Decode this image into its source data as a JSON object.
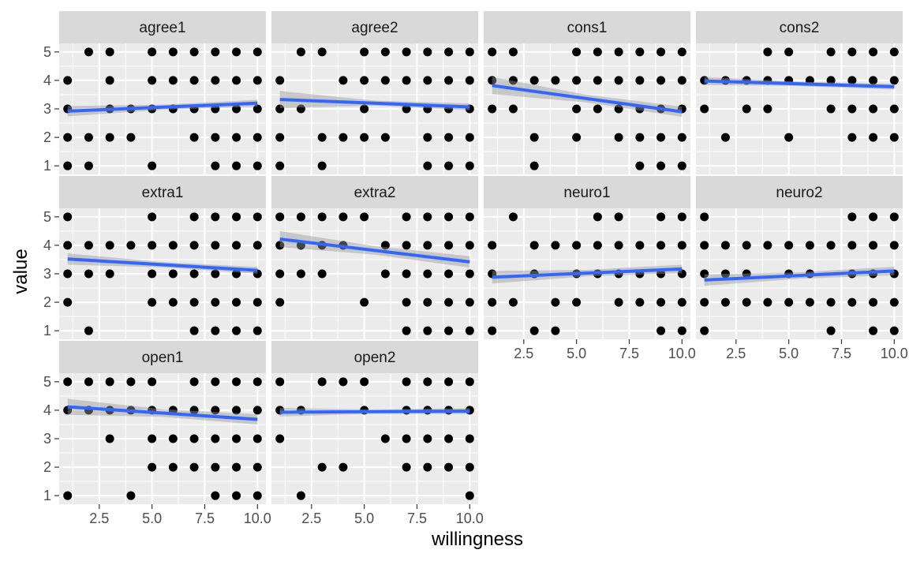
{
  "chart_data": {
    "type": "scatter",
    "xlabel": "willingness",
    "ylabel": "value",
    "x_ticks": [
      "2.5",
      "5.0",
      "7.5",
      "10.0"
    ],
    "y_ticks": [
      "1",
      "2",
      "3",
      "4",
      "5"
    ],
    "xlim": [
      0.6,
      10.4
    ],
    "ylim": [
      0.7,
      5.3
    ],
    "point_color": "#000000",
    "fit_color": "#3366ff",
    "band_color": "#999999",
    "grid": true,
    "panels": [
      {
        "label": "agree1",
        "fit": {
          "x": [
            1,
            10
          ],
          "y": [
            2.92,
            3.2
          ]
        },
        "ci": [
          0.18,
          0.12
        ],
        "points": {
          "5": [
            2,
            3,
            5,
            6,
            7,
            8,
            9,
            10
          ],
          "4": [
            1,
            3,
            5,
            6,
            7,
            8,
            9,
            10
          ],
          "3": [
            1,
            3,
            4,
            5,
            6,
            7,
            8,
            9,
            10
          ],
          "2": [
            1,
            2,
            3,
            4,
            7,
            8,
            9,
            10
          ],
          "1": [
            1,
            2,
            5,
            8,
            9,
            10
          ]
        }
      },
      {
        "label": "agree2",
        "fit": {
          "x": [
            1,
            10
          ],
          "y": [
            3.33,
            3.07
          ]
        },
        "ci": [
          0.3,
          0.12
        ],
        "points": {
          "5": [
            2,
            3,
            5,
            6,
            7,
            8,
            9,
            10
          ],
          "4": [
            1,
            4,
            5,
            6,
            7,
            8,
            9,
            10
          ],
          "3": [
            1,
            2,
            5,
            7,
            8,
            9,
            10
          ],
          "2": [
            1,
            3,
            4,
            5,
            6,
            8,
            9,
            10
          ],
          "1": [
            1,
            3,
            8,
            9,
            10
          ]
        }
      },
      {
        "label": "cons1",
        "fit": {
          "x": [
            1,
            10
          ],
          "y": [
            3.82,
            2.9
          ]
        },
        "ci": [
          0.3,
          0.18
        ],
        "points": {
          "5": [
            1,
            2,
            5,
            6,
            7,
            8,
            9,
            10
          ],
          "4": [
            1,
            2,
            3,
            4,
            5,
            6,
            7,
            8,
            9,
            10
          ],
          "3": [
            1,
            2,
            5,
            6,
            7,
            8,
            9,
            10
          ],
          "2": [
            3,
            5,
            7,
            8,
            9,
            10
          ],
          "1": [
            3,
            8,
            9,
            10
          ]
        }
      },
      {
        "label": "cons2",
        "fit": {
          "x": [
            1,
            10
          ],
          "y": [
            3.98,
            3.78
          ]
        },
        "ci": [
          0.14,
          0.1
        ],
        "points": {
          "5": [
            4,
            5,
            7,
            8,
            9,
            10
          ],
          "4": [
            1,
            2,
            3,
            4,
            5,
            6,
            7,
            8,
            9,
            10
          ],
          "3": [
            1,
            3,
            4,
            7,
            8,
            9,
            10
          ],
          "2": [
            2,
            5,
            8,
            9,
            10
          ]
        }
      },
      {
        "label": "extra1",
        "fit": {
          "x": [
            1,
            10
          ],
          "y": [
            3.52,
            3.12
          ]
        },
        "ci": [
          0.2,
          0.12
        ],
        "points": {
          "5": [
            1,
            5,
            7,
            8,
            9,
            10
          ],
          "4": [
            1,
            2,
            3,
            4,
            5,
            6,
            7,
            8,
            9,
            10
          ],
          "3": [
            1,
            2,
            3,
            5,
            6,
            7,
            8,
            9,
            10
          ],
          "2": [
            1,
            5,
            6,
            7,
            8,
            9,
            10
          ],
          "1": [
            2,
            7,
            8,
            9,
            10
          ]
        }
      },
      {
        "label": "extra2",
        "fit": {
          "x": [
            1,
            10
          ],
          "y": [
            4.22,
            3.42
          ]
        },
        "ci": [
          0.28,
          0.2
        ],
        "points": {
          "5": [
            1,
            2,
            3,
            4,
            5,
            7,
            8,
            9,
            10
          ],
          "4": [
            1,
            2,
            3,
            4,
            6,
            7,
            8,
            9,
            10
          ],
          "3": [
            1,
            2,
            3,
            6,
            7,
            8,
            9,
            10
          ],
          "2": [
            1,
            5,
            7,
            8,
            9,
            10
          ],
          "1": [
            7,
            8,
            9,
            10
          ]
        }
      },
      {
        "label": "neuro1",
        "fit": {
          "x": [
            1,
            10
          ],
          "y": [
            2.88,
            3.17
          ]
        },
        "ci": [
          0.22,
          0.15
        ],
        "points": {
          "5": [
            2,
            6,
            7,
            9,
            10
          ],
          "4": [
            1,
            3,
            4,
            5,
            6,
            7,
            8,
            9,
            10
          ],
          "3": [
            1,
            3,
            5,
            6,
            7,
            8,
            9,
            10
          ],
          "2": [
            1,
            2,
            4,
            5,
            7,
            8,
            9,
            10
          ],
          "1": [
            1,
            3,
            4,
            9,
            10
          ]
        }
      },
      {
        "label": "neuro2",
        "fit": {
          "x": [
            1,
            10
          ],
          "y": [
            2.78,
            3.1
          ]
        },
        "ci": [
          0.2,
          0.15
        ],
        "points": {
          "5": [
            1,
            8,
            9,
            10
          ],
          "4": [
            1,
            2,
            3,
            4,
            5,
            6,
            7,
            8,
            9,
            10
          ],
          "3": [
            1,
            2,
            3,
            5,
            6,
            8,
            9,
            10
          ],
          "2": [
            1,
            2,
            3,
            4,
            5,
            6,
            7,
            8,
            9,
            10
          ],
          "1": [
            1,
            7,
            9,
            10
          ]
        }
      },
      {
        "label": "open1",
        "fit": {
          "x": [
            1,
            10
          ],
          "y": [
            4.12,
            3.68
          ]
        },
        "ci": [
          0.28,
          0.18
        ],
        "points": {
          "5": [
            1,
            2,
            3,
            4,
            5,
            7,
            8,
            9,
            10
          ],
          "4": [
            1,
            2,
            3,
            4,
            5,
            6,
            7,
            8,
            9,
            10
          ],
          "3": [
            3,
            5,
            6,
            7,
            8,
            9,
            10
          ],
          "2": [
            5,
            6,
            7,
            8,
            9,
            10
          ],
          "1": [
            1,
            4,
            8,
            9,
            10
          ]
        }
      },
      {
        "label": "open2",
        "fit": {
          "x": [
            1,
            10
          ],
          "y": [
            3.93,
            3.97
          ]
        },
        "ci": [
          0.15,
          0.1
        ],
        "points": {
          "5": [
            1,
            3,
            4,
            5,
            7,
            8,
            9,
            10
          ],
          "4": [
            1,
            2,
            5,
            7,
            8,
            9,
            10
          ],
          "3": [
            1,
            6,
            7,
            8,
            9,
            10
          ],
          "2": [
            3,
            4,
            7,
            8,
            9,
            10
          ],
          "1": [
            2,
            10
          ]
        }
      }
    ]
  }
}
